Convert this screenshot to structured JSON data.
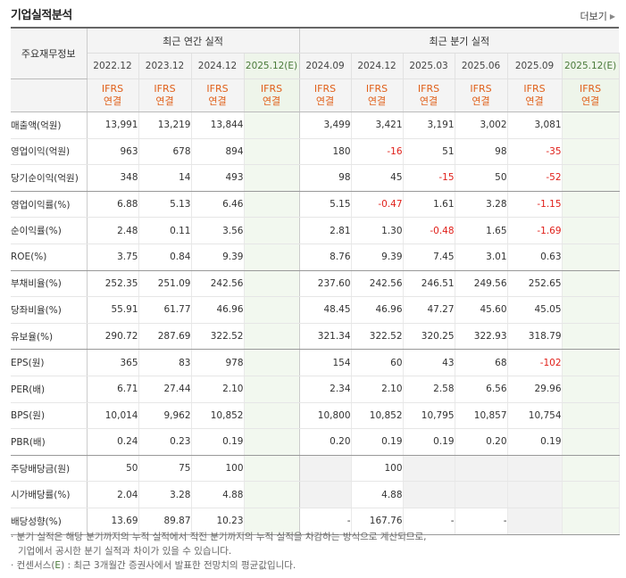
{
  "header": {
    "title": "기업실적분석",
    "more_label": "더보기"
  },
  "table": {
    "row_header_label": "주요재무정보",
    "groups": [
      {
        "label": "최근 연간 실적"
      },
      {
        "label": "최근 분기 실적"
      }
    ],
    "periods": [
      {
        "label": "2022.12",
        "ifrs1": "IFRS",
        "ifrs2": "연결"
      },
      {
        "label": "2023.12",
        "ifrs1": "IFRS",
        "ifrs2": "연결"
      },
      {
        "label": "2024.12",
        "ifrs1": "IFRS",
        "ifrs2": "연결"
      },
      {
        "label": "2025.12(E)",
        "ifrs1": "IFRS",
        "ifrs2": "연결"
      },
      {
        "label": "2024.09",
        "ifrs1": "IFRS",
        "ifrs2": "연결"
      },
      {
        "label": "2024.12",
        "ifrs1": "IFRS",
        "ifrs2": "연결"
      },
      {
        "label": "2025.03",
        "ifrs1": "IFRS",
        "ifrs2": "연결"
      },
      {
        "label": "2025.06",
        "ifrs1": "IFRS",
        "ifrs2": "연결"
      },
      {
        "label": "2025.09",
        "ifrs1": "IFRS",
        "ifrs2": "연결"
      },
      {
        "label": "2025.12(E)",
        "ifrs1": "IFRS",
        "ifrs2": "연결"
      }
    ],
    "rows": [
      {
        "label": "매출액(억원)",
        "values": [
          "13,991",
          "13,219",
          "13,844",
          "",
          "3,499",
          "3,421",
          "3,191",
          "3,002",
          "3,081",
          ""
        ]
      },
      {
        "label": "영업이익(억원)",
        "values": [
          "963",
          "678",
          "894",
          "",
          "180",
          "-16",
          "51",
          "98",
          "-35",
          ""
        ]
      },
      {
        "label": "당기순이익(억원)",
        "values": [
          "348",
          "14",
          "493",
          "",
          "98",
          "45",
          "-15",
          "50",
          "-52",
          ""
        ]
      },
      {
        "label": "영업이익률(%)",
        "values": [
          "6.88",
          "5.13",
          "6.46",
          "",
          "5.15",
          "-0.47",
          "1.61",
          "3.28",
          "-1.15",
          ""
        ]
      },
      {
        "label": "순이익률(%)",
        "values": [
          "2.48",
          "0.11",
          "3.56",
          "",
          "2.81",
          "1.30",
          "-0.48",
          "1.65",
          "-1.69",
          ""
        ]
      },
      {
        "label": "ROE(%)",
        "values": [
          "3.75",
          "0.84",
          "9.39",
          "",
          "8.76",
          "9.39",
          "7.45",
          "3.01",
          "0.63",
          ""
        ]
      },
      {
        "label": "부채비율(%)",
        "values": [
          "252.35",
          "251.09",
          "242.56",
          "",
          "237.60",
          "242.56",
          "246.51",
          "249.56",
          "252.65",
          ""
        ]
      },
      {
        "label": "당좌비율(%)",
        "values": [
          "55.91",
          "61.77",
          "46.96",
          "",
          "48.45",
          "46.96",
          "47.27",
          "45.60",
          "45.05",
          ""
        ]
      },
      {
        "label": "유보율(%)",
        "values": [
          "290.72",
          "287.69",
          "322.52",
          "",
          "321.34",
          "322.52",
          "320.25",
          "322.93",
          "318.79",
          ""
        ]
      },
      {
        "label": "EPS(원)",
        "values": [
          "365",
          "83",
          "978",
          "",
          "154",
          "60",
          "43",
          "68",
          "-102",
          ""
        ]
      },
      {
        "label": "PER(배)",
        "values": [
          "6.71",
          "27.44",
          "2.10",
          "",
          "2.34",
          "2.10",
          "2.58",
          "6.56",
          "29.96",
          ""
        ]
      },
      {
        "label": "BPS(원)",
        "values": [
          "10,014",
          "9,962",
          "10,852",
          "",
          "10,800",
          "10,852",
          "10,795",
          "10,857",
          "10,754",
          ""
        ]
      },
      {
        "label": "PBR(배)",
        "values": [
          "0.24",
          "0.23",
          "0.19",
          "",
          "0.20",
          "0.19",
          "0.19",
          "0.20",
          "0.19",
          ""
        ]
      },
      {
        "label": "주당배당금(원)",
        "values": [
          "50",
          "75",
          "100",
          "",
          "",
          "100",
          "",
          "",
          "",
          ""
        ]
      },
      {
        "label": "시가배당률(%)",
        "values": [
          "2.04",
          "3.28",
          "4.88",
          "",
          "",
          "4.88",
          "",
          "",
          "",
          ""
        ]
      },
      {
        "label": "배당성향(%)",
        "values": [
          "13.69",
          "89.87",
          "10.23",
          "",
          "-",
          "167.76",
          "-",
          "-",
          "",
          ""
        ]
      }
    ]
  },
  "notes": {
    "line1": "· 분기 실적은 해당 분기까지의 누적 실적에서 직전 분기까지의 누적 실적을 차감하는 방식으로 계산되므로,",
    "line2": "기업에서 공시한 분기 실적과 차이가 있을 수 있습니다.",
    "line3_prefix": "· 컨센서스(",
    "line3_e": "E",
    "line3_suffix": ") : 최근 3개월간 증권사에서 발표한 전망치의 평균값입니다."
  },
  "colors": {
    "ifrs_orange": "#e0601a",
    "negative_red": "#e0201a",
    "estimate_green": "#4a7a3a"
  }
}
